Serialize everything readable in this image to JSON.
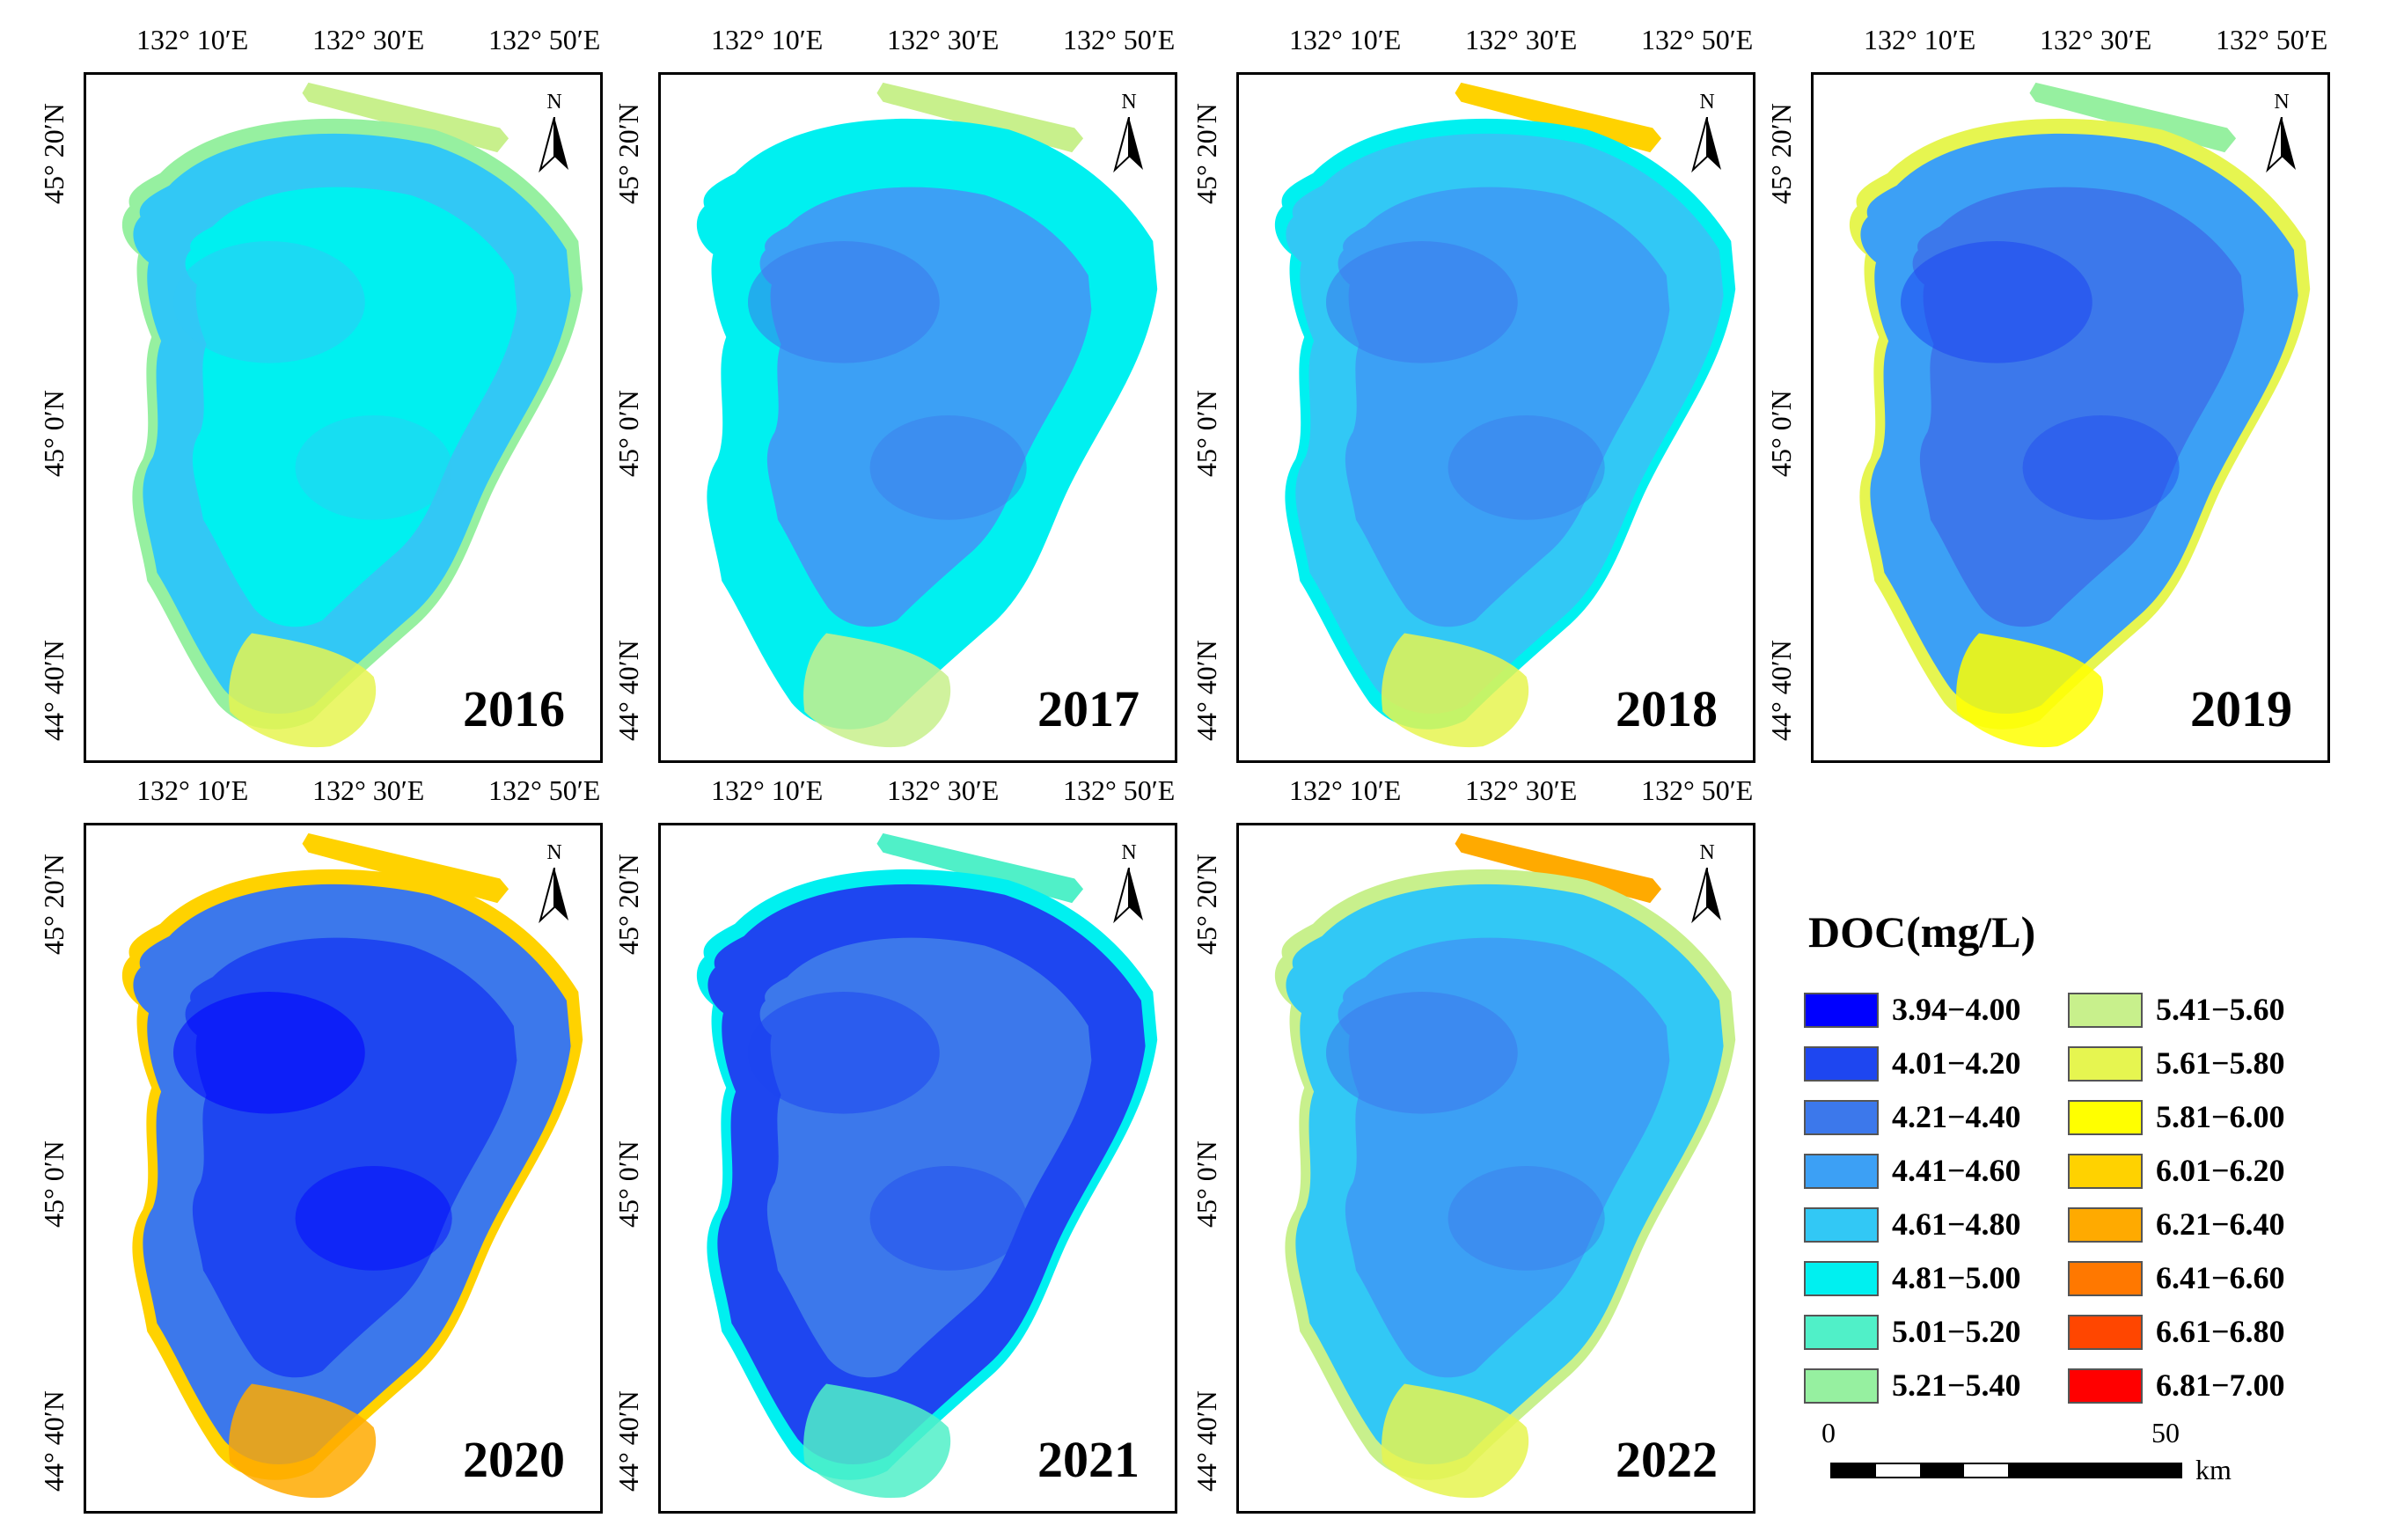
{
  "figure": {
    "years": [
      "2016",
      "2017",
      "2018",
      "2019",
      "2020",
      "2021",
      "2022"
    ],
    "north_label": "N",
    "x_ticks": [
      "132° 10′E",
      "132° 30′E",
      "132° 50′E"
    ],
    "y_ticks": [
      "45° 20′N",
      "45° 0′N",
      "44° 40′N"
    ]
  },
  "legend": {
    "title": "DOC(mg/L)",
    "classes": [
      {
        "label": "3.94−4.00",
        "color": "#0000ff"
      },
      {
        "label": "4.01−4.20",
        "color": "#1e46f0"
      },
      {
        "label": "4.21−4.40",
        "color": "#3c78eb"
      },
      {
        "label": "4.41−4.60",
        "color": "#3ca0f5"
      },
      {
        "label": "4.61−4.80",
        "color": "#32c8f5"
      },
      {
        "label": "4.81−5.00",
        "color": "#00f0f0"
      },
      {
        "label": "5.01−5.20",
        "color": "#50f0c8"
      },
      {
        "label": "5.21−5.40",
        "color": "#96f0a0"
      },
      {
        "label": "5.41−5.60",
        "color": "#c8f08c"
      },
      {
        "label": "5.61−5.80",
        "color": "#e6f550"
      },
      {
        "label": "5.81−6.00",
        "color": "#ffff00"
      },
      {
        "label": "6.01−6.20",
        "color": "#ffd200"
      },
      {
        "label": "6.21−6.40",
        "color": "#ffaa00"
      },
      {
        "label": "6.41−6.60",
        "color": "#ff7800"
      },
      {
        "label": "6.61−6.80",
        "color": "#ff4600"
      },
      {
        "label": "6.81−7.00",
        "color": "#ff0000"
      }
    ]
  },
  "scale_bar": {
    "start": "0",
    "end": "50",
    "unit": "km"
  }
}
